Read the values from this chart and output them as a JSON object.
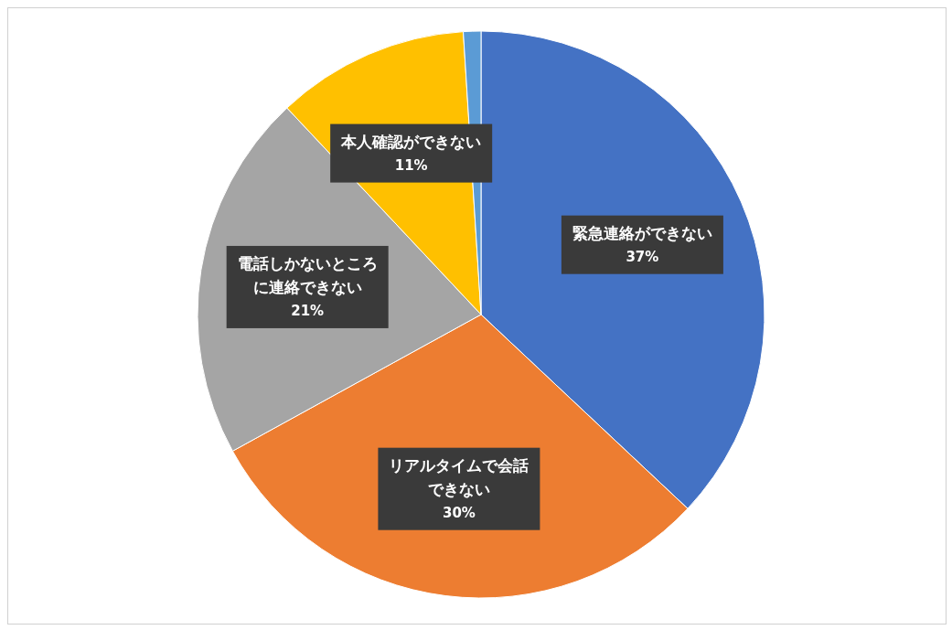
{
  "chart_data": {
    "type": "pie",
    "categories": [
      "緊急連絡ができない",
      "リアルタイムで会話できない",
      "電話しかないところに連絡できない",
      "本人確認ができない",
      null
    ],
    "values": [
      37,
      30,
      21,
      11,
      1
    ],
    "value_labels": [
      "37%",
      "30%",
      "21%",
      "11%",
      null
    ],
    "colors": [
      "#4472c4",
      "#ed7d31",
      "#a5a5a5",
      "#ffc000",
      "#5b9bd5"
    ],
    "legend": false
  }
}
